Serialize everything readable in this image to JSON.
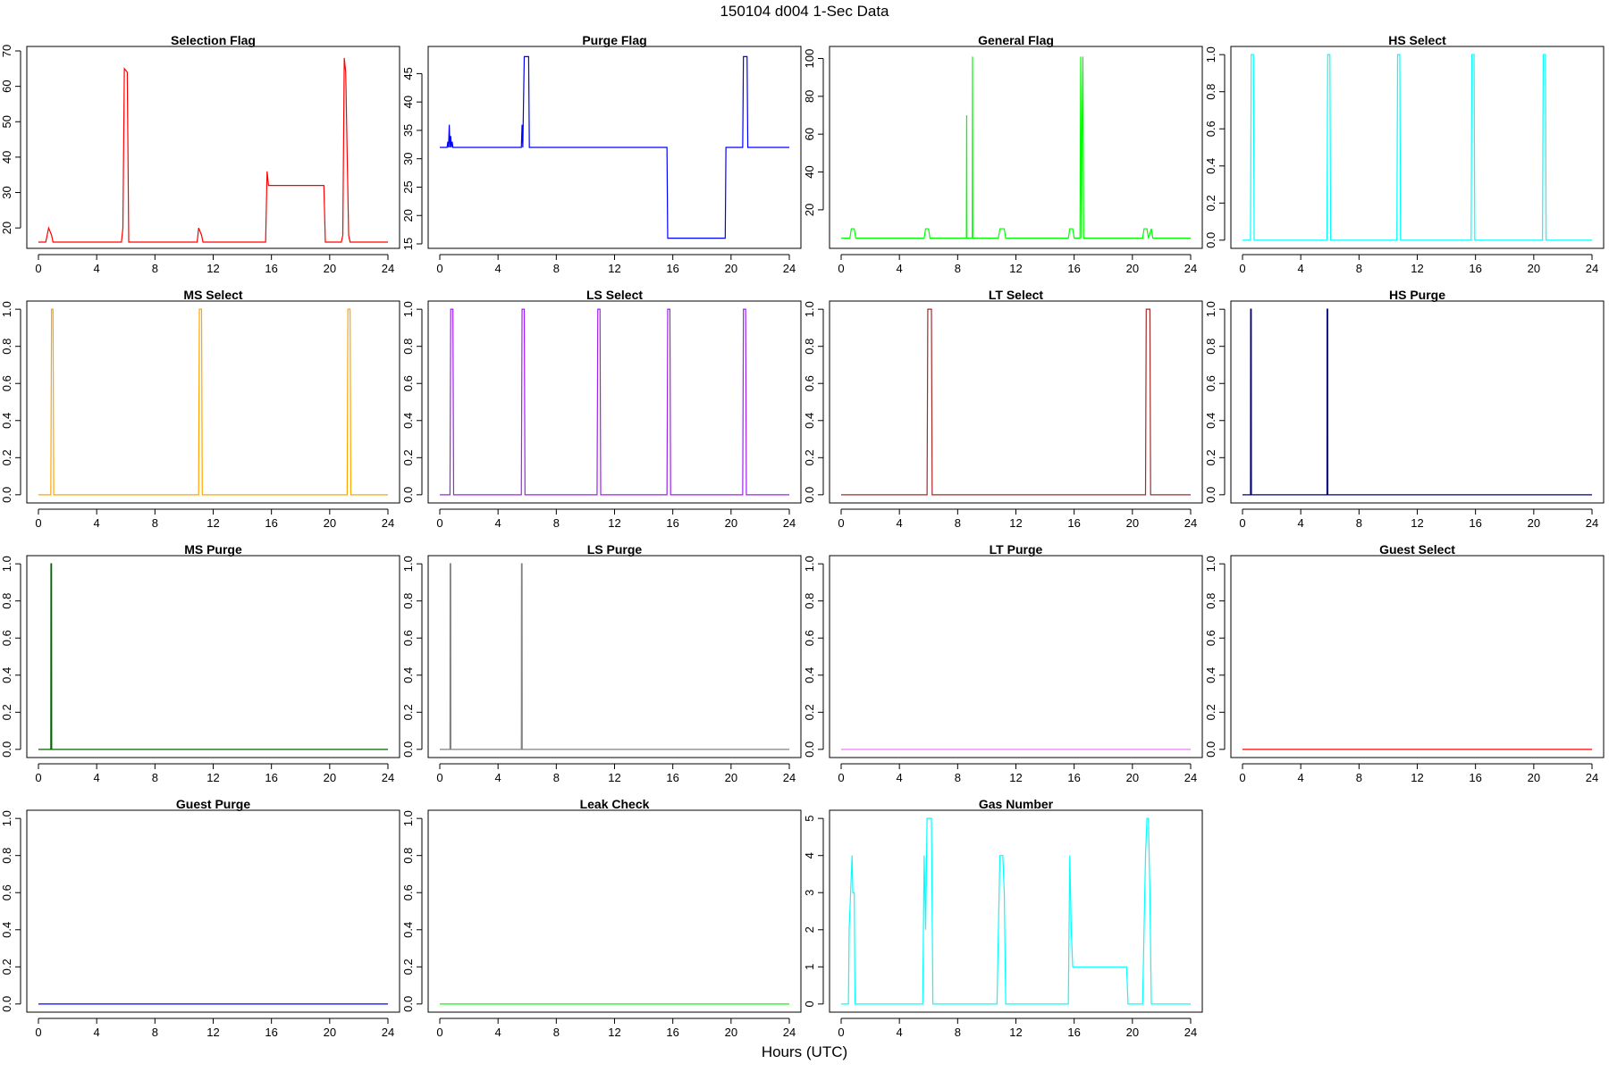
{
  "figure": {
    "title": "150104   d004   1-Sec Data",
    "xlabel": "Hours (UTC)"
  },
  "chart_data": [
    {
      "type": "line",
      "title": "Selection Flag",
      "color": "#ff0000",
      "xlim": [
        0,
        24
      ],
      "ylim": [
        15.5,
        70
      ],
      "xticks": [
        0,
        4,
        8,
        12,
        16,
        20,
        24
      ],
      "yticks": [
        20,
        30,
        40,
        50,
        60,
        70
      ],
      "ytick_labels": [
        "20",
        "30",
        "40",
        "50",
        "60",
        "70"
      ],
      "x": [
        0,
        0.5,
        0.6,
        0.7,
        0.9,
        1.0,
        5.7,
        5.8,
        5.9,
        6.1,
        6.2,
        10.9,
        11.0,
        11.2,
        11.3,
        15.6,
        15.7,
        15.8,
        19.6,
        19.7,
        20.8,
        20.9,
        21.0,
        21.1,
        21.3,
        21.4,
        24
      ],
      "y": [
        16,
        16,
        18,
        20,
        18,
        16,
        16,
        20,
        65,
        64,
        16,
        16,
        20,
        18,
        16,
        16,
        36,
        32,
        32,
        16,
        16,
        18,
        68,
        64,
        18,
        16,
        16
      ]
    },
    {
      "type": "line",
      "title": "Purge Flag",
      "color": "#0000ff",
      "xlim": [
        0,
        24
      ],
      "ylim": [
        15,
        49
      ],
      "xticks": [
        0,
        4,
        8,
        12,
        16,
        20,
        24
      ],
      "yticks": [
        15,
        20,
        25,
        30,
        35,
        40,
        45
      ],
      "ytick_labels": [
        "15",
        "20",
        "25",
        "30",
        "35",
        "40",
        "45"
      ],
      "x": [
        0,
        0.5,
        0.55,
        0.6,
        0.65,
        0.7,
        0.75,
        0.8,
        0.85,
        0.9,
        1.0,
        5.6,
        5.65,
        5.7,
        5.8,
        6.1,
        6.15,
        15.6,
        15.65,
        19.6,
        19.65,
        20.8,
        20.85,
        21.1,
        21.15,
        24
      ],
      "y": [
        32,
        32,
        33,
        32,
        36,
        32,
        34,
        32,
        33,
        32,
        32,
        32,
        36,
        32,
        48,
        48,
        32,
        32,
        16,
        16,
        32,
        32,
        48,
        48,
        32,
        32
      ]
    },
    {
      "type": "line",
      "title": "General Flag",
      "color": "#00ff00",
      "xlim": [
        0,
        24
      ],
      "ylim": [
        2,
        104
      ],
      "xticks": [
        0,
        4,
        8,
        12,
        16,
        20,
        24
      ],
      "yticks": [
        20,
        40,
        60,
        80,
        100
      ],
      "ytick_labels": [
        "20",
        "40",
        "60",
        "80",
        "100"
      ],
      "x": [
        0,
        0.6,
        0.7,
        0.9,
        1.0,
        5.7,
        5.8,
        6.0,
        6.1,
        8.6,
        8.62,
        8.64,
        9.0,
        9.02,
        9.04,
        10.8,
        10.9,
        11.2,
        11.3,
        15.6,
        15.7,
        15.9,
        16.0,
        16.4,
        16.45,
        16.5,
        16.55,
        16.6,
        16.65,
        16.7,
        20.7,
        20.8,
        21.0,
        21.1,
        21.3,
        21.4,
        24
      ],
      "y": [
        5,
        5,
        10,
        10,
        5,
        5,
        10,
        10,
        5,
        5,
        70,
        5,
        5,
        101,
        5,
        5,
        10,
        10,
        5,
        5,
        10,
        10,
        5,
        5,
        101,
        5,
        70,
        101,
        5,
        5,
        5,
        10,
        10,
        5,
        10,
        5,
        5
      ]
    },
    {
      "type": "line",
      "title": "HS Select",
      "color": "#00ffff",
      "xlim": [
        0,
        24
      ],
      "ylim": [
        -0.02,
        1.02
      ],
      "xticks": [
        0,
        4,
        8,
        12,
        16,
        20,
        24
      ],
      "yticks": [
        0,
        0.2,
        0.4,
        0.6,
        0.8,
        1.0
      ],
      "ytick_labels": [
        "0.0",
        "0.2",
        "0.4",
        "0.6",
        "0.8",
        "1.0"
      ],
      "x": [
        0,
        0.55,
        0.6,
        0.75,
        0.8,
        5.8,
        5.85,
        6.0,
        6.05,
        10.6,
        10.65,
        10.8,
        10.85,
        15.7,
        15.75,
        15.9,
        15.95,
        20.6,
        20.65,
        20.8,
        20.85,
        24
      ],
      "y": [
        0,
        0,
        1,
        1,
        0,
        0,
        1,
        1,
        0,
        0,
        1,
        1,
        0,
        0,
        1,
        1,
        0,
        0,
        1,
        1,
        0,
        0
      ]
    },
    {
      "type": "line",
      "title": "MS Select",
      "color": "#ffa500",
      "xlim": [
        0,
        24
      ],
      "ylim": [
        -0.02,
        1.02
      ],
      "xticks": [
        0,
        4,
        8,
        12,
        16,
        20,
        24
      ],
      "yticks": [
        0,
        0.2,
        0.4,
        0.6,
        0.8,
        1.0
      ],
      "ytick_labels": [
        "0.0",
        "0.2",
        "0.4",
        "0.6",
        "0.8",
        "1.0"
      ],
      "x": [
        0,
        0.85,
        0.9,
        1.0,
        1.05,
        11.0,
        11.05,
        11.2,
        11.25,
        21.2,
        21.25,
        21.4,
        21.45,
        24
      ],
      "y": [
        0,
        0,
        1,
        1,
        0,
        0,
        1,
        1,
        0,
        0,
        1,
        1,
        0,
        0
      ]
    },
    {
      "type": "line",
      "title": "LS Select",
      "color": "#a020f0",
      "xlim": [
        0,
        24
      ],
      "ylim": [
        -0.02,
        1.02
      ],
      "xticks": [
        0,
        4,
        8,
        12,
        16,
        20,
        24
      ],
      "yticks": [
        0,
        0.2,
        0.4,
        0.6,
        0.8,
        1.0
      ],
      "ytick_labels": [
        "0.0",
        "0.2",
        "0.4",
        "0.6",
        "0.8",
        "1.0"
      ],
      "x": [
        0,
        0.7,
        0.75,
        0.9,
        0.95,
        5.6,
        5.65,
        5.8,
        5.85,
        10.8,
        10.85,
        11.0,
        11.05,
        15.6,
        15.65,
        15.8,
        15.85,
        20.8,
        20.85,
        21.0,
        21.05,
        24
      ],
      "y": [
        0,
        0,
        1,
        1,
        0,
        0,
        1,
        1,
        0,
        0,
        1,
        1,
        0,
        0,
        1,
        1,
        0,
        0,
        1,
        1,
        0,
        0
      ]
    },
    {
      "type": "line",
      "title": "LT Select",
      "color": "#a52a2a",
      "xlim": [
        0,
        24
      ],
      "ylim": [
        -0.02,
        1.02
      ],
      "xticks": [
        0,
        4,
        8,
        12,
        16,
        20,
        24
      ],
      "yticks": [
        0,
        0.2,
        0.4,
        0.6,
        0.8,
        1.0
      ],
      "ytick_labels": [
        "0.0",
        "0.2",
        "0.4",
        "0.6",
        "0.8",
        "1.0"
      ],
      "x": [
        0,
        5.9,
        5.95,
        6.2,
        6.25,
        20.9,
        20.95,
        21.2,
        21.25,
        24
      ],
      "y": [
        0,
        0,
        1,
        1,
        0,
        0,
        1,
        1,
        0,
        0
      ]
    },
    {
      "type": "line",
      "title": "HS Purge",
      "color": "#000080",
      "xlim": [
        0,
        24
      ],
      "ylim": [
        -0.02,
        1.02
      ],
      "xticks": [
        0,
        4,
        8,
        12,
        16,
        20,
        24
      ],
      "yticks": [
        0,
        0.2,
        0.4,
        0.6,
        0.8,
        1.0
      ],
      "ytick_labels": [
        "0.0",
        "0.2",
        "0.4",
        "0.6",
        "0.8",
        "1.0"
      ],
      "x": [
        0,
        0.55,
        0.56,
        0.6,
        0.61,
        5.8,
        5.81,
        5.85,
        5.86,
        24
      ],
      "y": [
        0,
        0,
        1,
        1,
        0,
        0,
        1,
        1,
        0,
        0
      ]
    },
    {
      "type": "line",
      "title": "MS Purge",
      "color": "#006400",
      "xlim": [
        0,
        24
      ],
      "ylim": [
        -0.02,
        1.02
      ],
      "xticks": [
        0,
        4,
        8,
        12,
        16,
        20,
        24
      ],
      "yticks": [
        0,
        0.2,
        0.4,
        0.6,
        0.8,
        1.0
      ],
      "ytick_labels": [
        "0.0",
        "0.2",
        "0.4",
        "0.6",
        "0.8",
        "1.0"
      ],
      "x": [
        0,
        0.85,
        0.86,
        0.9,
        0.91,
        24
      ],
      "y": [
        0,
        0,
        1,
        1,
        0,
        0
      ]
    },
    {
      "type": "line",
      "title": "LS Purge",
      "color": "#808080",
      "xlim": [
        0,
        24
      ],
      "ylim": [
        -0.02,
        1.02
      ],
      "xticks": [
        0,
        4,
        8,
        12,
        16,
        20,
        24
      ],
      "yticks": [
        0,
        0.2,
        0.4,
        0.6,
        0.8,
        1.0
      ],
      "ytick_labels": [
        "0.0",
        "0.2",
        "0.4",
        "0.6",
        "0.8",
        "1.0"
      ],
      "x": [
        0,
        0.7,
        0.71,
        0.75,
        0.76,
        5.6,
        5.61,
        5.65,
        5.66,
        24
      ],
      "y": [
        0,
        0,
        1,
        1,
        0,
        0,
        1,
        1,
        0,
        0
      ]
    },
    {
      "type": "line",
      "title": "LT Purge",
      "color": "#ee82ee",
      "xlim": [
        0,
        24
      ],
      "ylim": [
        -0.02,
        1.02
      ],
      "xticks": [
        0,
        4,
        8,
        12,
        16,
        20,
        24
      ],
      "yticks": [
        0,
        0.2,
        0.4,
        0.6,
        0.8,
        1.0
      ],
      "ytick_labels": [
        "0.0",
        "0.2",
        "0.4",
        "0.6",
        "0.8",
        "1.0"
      ],
      "x": [
        0,
        24
      ],
      "y": [
        0,
        0
      ]
    },
    {
      "type": "line",
      "title": "Guest Select",
      "color": "#ff0000",
      "xlim": [
        0,
        24
      ],
      "ylim": [
        -0.02,
        1.02
      ],
      "xticks": [
        0,
        4,
        8,
        12,
        16,
        20,
        24
      ],
      "yticks": [
        0,
        0.2,
        0.4,
        0.6,
        0.8,
        1.0
      ],
      "ytick_labels": [
        "0.0",
        "0.2",
        "0.4",
        "0.6",
        "0.8",
        "1.0"
      ],
      "x": [
        0,
        24
      ],
      "y": [
        0,
        0
      ]
    },
    {
      "type": "line",
      "title": "Guest Purge",
      "color": "#0000ff",
      "xlim": [
        0,
        24
      ],
      "ylim": [
        -0.02,
        1.02
      ],
      "xticks": [
        0,
        4,
        8,
        12,
        16,
        20,
        24
      ],
      "yticks": [
        0,
        0.2,
        0.4,
        0.6,
        0.8,
        1.0
      ],
      "ytick_labels": [
        "0.0",
        "0.2",
        "0.4",
        "0.6",
        "0.8",
        "1.0"
      ],
      "x": [
        0,
        24
      ],
      "y": [
        0,
        0
      ]
    },
    {
      "type": "line",
      "title": "Leak Check",
      "color": "#00ff00",
      "xlim": [
        0,
        24
      ],
      "ylim": [
        -0.02,
        1.02
      ],
      "xticks": [
        0,
        4,
        8,
        12,
        16,
        20,
        24
      ],
      "yticks": [
        0,
        0.2,
        0.4,
        0.6,
        0.8,
        1.0
      ],
      "ytick_labels": [
        "0.0",
        "0.2",
        "0.4",
        "0.6",
        "0.8",
        "1.0"
      ],
      "x": [
        0,
        24
      ],
      "y": [
        0,
        0
      ]
    },
    {
      "type": "line",
      "title": "Gas Number",
      "color": "#00ffff",
      "xlim": [
        0,
        24
      ],
      "ylim": [
        -0.1,
        5.1
      ],
      "xticks": [
        0,
        4,
        8,
        12,
        16,
        20,
        24
      ],
      "yticks": [
        0,
        1,
        2,
        3,
        4,
        5
      ],
      "ytick_labels": [
        "0",
        "1",
        "2",
        "3",
        "4",
        "5"
      ],
      "x": [
        0,
        0.5,
        0.55,
        0.75,
        0.8,
        0.9,
        0.95,
        1.0,
        5.6,
        5.7,
        5.8,
        5.9,
        6.0,
        6.2,
        6.3,
        10.7,
        10.8,
        10.9,
        11.1,
        11.2,
        11.3,
        15.6,
        15.7,
        15.8,
        15.9,
        19.6,
        19.7,
        20.7,
        20.8,
        20.9,
        21.0,
        21.1,
        21.2,
        21.3,
        24
      ],
      "y": [
        0,
        0,
        2,
        4,
        3,
        3,
        0,
        0,
        0,
        4,
        2,
        5,
        5,
        5,
        0,
        0,
        2,
        4,
        4,
        3,
        0,
        0,
        4,
        2,
        1,
        1,
        0,
        0,
        2,
        4,
        5,
        5,
        3,
        0,
        0
      ]
    }
  ]
}
